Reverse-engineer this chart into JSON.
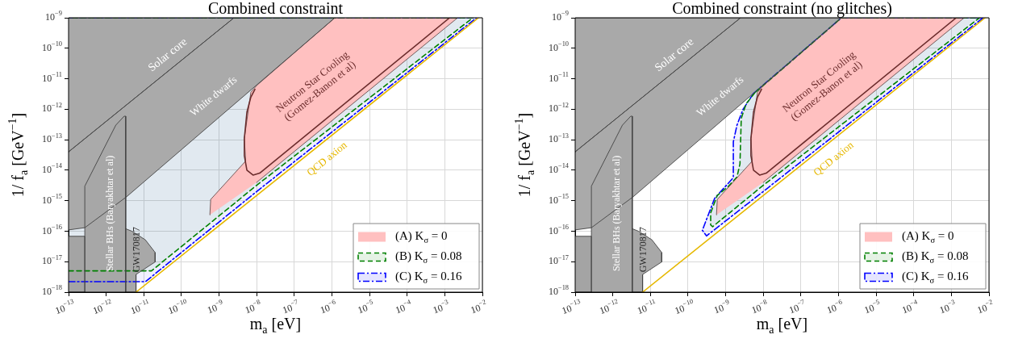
{
  "chart_data": [
    {
      "type": "area",
      "title": "Combined constraint",
      "xlabel": "m$_{a}$ [eV]",
      "ylabel": "1/ f$_{a}$ [GeV$^{−1}$]",
      "log": "xy",
      "grid": true,
      "legend": "bottom right",
      "xlim": [
        1e-13,
        0.01
      ],
      "ylim": [
        1e-18,
        1e-09
      ],
      "xticks": [
        {
          "value": 1e-13,
          "label": "10$^{−13}$"
        },
        {
          "value": 1e-12,
          "label": "10$^{−12}$"
        },
        {
          "value": 1e-11,
          "label": "10$^{−11}$"
        },
        {
          "value": 1e-10,
          "label": "10$^{−10}$"
        },
        {
          "value": 1e-09,
          "label": "10$^{−9}$"
        },
        {
          "value": 1e-08,
          "label": "10$^{−8}$"
        },
        {
          "value": 1e-07,
          "label": "10$^{−7}$"
        },
        {
          "value": 1e-06,
          "label": "10$^{−6}$"
        },
        {
          "value": 1e-05,
          "label": "10$^{−5}$"
        },
        {
          "value": 0.0001,
          "label": "10$^{−4}$"
        },
        {
          "value": 0.001,
          "label": "10$^{−3}$"
        },
        {
          "value": 0.01,
          "label": "10$^{−2}$"
        }
      ],
      "yticks": [
        {
          "value": 1e-18,
          "label": "10$^{−18}$"
        },
        {
          "value": 1e-17,
          "label": "10$^{−17}$"
        },
        {
          "value": 1e-16,
          "label": "10$^{−16}$"
        },
        {
          "value": 1e-15,
          "label": "10$^{−15}$"
        },
        {
          "value": 1e-14,
          "label": "10$^{−14}$"
        },
        {
          "value": 1e-13,
          "label": "10$^{−13}$"
        },
        {
          "value": 1e-12,
          "label": "10$^{−12}$"
        },
        {
          "value": 1e-11,
          "label": "10$^{−11}$"
        },
        {
          "value": 1e-10,
          "label": "10$^{−10}$"
        },
        {
          "value": 1e-09,
          "label": "10$^{−9}$"
        }
      ],
      "series": [
        {
          "name": "(C) K$_{σ}$ = 0.16",
          "type": "area",
          "color": "#0000ff",
          "line_style": "dashdot",
          "x": [
            1e-13,
            1.1e-11,
            1e-08,
            0.007,
            1e-13
          ],
          "values": [
            2.2e-18,
            2.2e-18,
            2e-15,
            1e-09,
            1e-09
          ]
        },
        {
          "name": "(B) K$_{σ}$ = 0.08",
          "type": "area",
          "color": "#008000",
          "line_style": "dashed",
          "x": [
            1e-13,
            1.6e-11,
            1e-08,
            0.0056,
            1e-13
          ],
          "values": [
            5e-18,
            5e-18,
            3.2e-15,
            1e-09,
            1e-09
          ]
        },
        {
          "name": "(A) K$_{σ}$ = 0",
          "type": "area",
          "color": "#ffc0c0",
          "x": [
            5.7e-10,
            6e-10,
            5.1e-09,
            4.7e-09,
            7e-09,
            1e-08,
            1.2e-06,
            0.0022,
            1e-08
          ],
          "values": [
            3.4e-16,
            1.1e-15,
            2e-14,
            1.1e-13,
            3.6e-12,
            6e-12,
            1e-09,
            1e-09,
            4e-15
          ]
        },
        {
          "name": "Solar core",
          "type": "area",
          "color": "#a9a9a9",
          "x": [
            1e-13,
            2.5e-09,
            1e-13
          ],
          "values": [
            4e-14,
            1e-09,
            1e-09
          ]
        },
        {
          "name": "White dwarfs",
          "type": "area",
          "color": "#aaaaaa",
          "x": [
            1e-13,
            2.5e-09,
            1.2e-06,
            3.5e-12,
            2.7e-13,
            1e-13
          ],
          "values": [
            4e-14,
            1e-09,
            1e-09,
            1.35e-15,
            1.3e-16,
            1.1e-16
          ]
        },
        {
          "type": "area",
          "color": "#a4a4a4",
          "x": [
            1e-13,
            2.7e-13,
            2.7e-13,
            1e-13
          ],
          "values": [
            1e-18,
            1e-18,
            6.8e-17,
            6.8e-17
          ]
        },
        {
          "name": "Stellar BHs (Baryakhtar et al)",
          "type": "area",
          "color": "#a7a7a7",
          "x": [
            2.7e-13,
            2.7e-13,
            1.8e-12,
            3e-12,
            3.3e-12,
            3.3e-12
          ],
          "values": [
            1e-18,
            3e-15,
            3e-13,
            5.9e-13,
            5.9e-13,
            1e-18
          ]
        },
        {
          "name": "GW170817",
          "type": "area",
          "color": "#a8a8a8",
          "x": [
            3.3e-12,
            4.8e-12,
            1.1e-11,
            2e-11,
            2e-11,
            6.2e-12,
            6.2e-12,
            3.3e-12
          ],
          "values": [
            1.2e-16,
            1e-16,
            5.2e-17,
            2e-17,
            9.8e-18,
            3.8e-18,
            1e-18,
            1e-18
          ]
        },
        {
          "name": "Neutron Star Cooling\n(Gomez-Banon et al)",
          "type": "line",
          "color": "#6b2c2c",
          "x": [
            0.00135,
            1.2e-08,
            8e-09,
            5.5e-09,
            4.7e-09,
            4.7e-09,
            5.5e-09,
            7e-09,
            9e-09
          ],
          "values": [
            1e-09,
            8e-15,
            6.9e-15,
            1e-14,
            3e-14,
            1.1e-13,
            8e-13,
            2.5e-12,
            4.5e-12
          ]
        },
        {
          "name": "QCD axion",
          "type": "line",
          "color": "#e6b800",
          "x": [
            6.2e-12,
            0.0079
          ],
          "values": [
            1e-18,
            1e-09
          ]
        }
      ]
    },
    {
      "type": "area",
      "title": "Combined constraint (no glitches)",
      "xlabel": "m$_{a}$ [eV]",
      "ylabel": "1/ f$_{a}$ [GeV$^{−1}$]",
      "log": "xy",
      "grid": true,
      "legend": "bottom right",
      "xlim": [
        1e-13,
        0.01
      ],
      "ylim": [
        1e-18,
        1e-09
      ],
      "xticks": [
        {
          "value": 1e-13,
          "label": "10$^{−13}$"
        },
        {
          "value": 1e-12,
          "label": "10$^{−12}$"
        },
        {
          "value": 1e-11,
          "label": "10$^{−11}$"
        },
        {
          "value": 1e-10,
          "label": "10$^{−10}$"
        },
        {
          "value": 1e-09,
          "label": "10$^{−9}$"
        },
        {
          "value": 1e-08,
          "label": "10$^{−8}$"
        },
        {
          "value": 1e-07,
          "label": "10$^{−7}$"
        },
        {
          "value": 1e-06,
          "label": "10$^{−6}$"
        },
        {
          "value": 1e-05,
          "label": "10$^{−5}$"
        },
        {
          "value": 0.0001,
          "label": "10$^{−4}$"
        },
        {
          "value": 0.001,
          "label": "10$^{−3}$"
        },
        {
          "value": 0.01,
          "label": "10$^{−2}$"
        }
      ],
      "yticks": [
        {
          "value": 1e-18,
          "label": "10$^{−18}$"
        },
        {
          "value": 1e-17,
          "label": "10$^{−17}$"
        },
        {
          "value": 1e-16,
          "label": "10$^{−16}$"
        },
        {
          "value": 1e-15,
          "label": "10$^{−15}$"
        },
        {
          "value": 1e-14,
          "label": "10$^{−14}$"
        },
        {
          "value": 1e-13,
          "label": "10$^{−13}$"
        },
        {
          "value": 1e-12,
          "label": "10$^{−12}$"
        },
        {
          "value": 1e-11,
          "label": "10$^{−11}$"
        },
        {
          "value": 1e-10,
          "label": "10$^{−10}$"
        },
        {
          "value": 1e-09,
          "label": "10$^{−9}$"
        }
      ],
      "series": [
        {
          "name": "(C) K$_{σ}$ = 0.16",
          "type": "area",
          "color": "#0000ff",
          "line_style": "dashdot",
          "x": [
            5.5e-09,
            2.9e-09,
            2e-09,
            1.6e-09,
            1.6e-09,
            5.1e-10,
            2.4e-10,
            3.1e-10,
            1e-08,
            0.007,
            1.2e-06,
            5.5e-09
          ],
          "values": [
            3.3e-12,
            1e-12,
            3e-13,
            8.5e-14,
            5.7e-15,
            1.2e-15,
            1.07e-16,
            7e-17,
            2e-15,
            1e-09,
            1e-09,
            3.3e-12
          ]
        },
        {
          "name": "(B) K$_{σ}$ = 0.08",
          "type": "area",
          "color": "#008000",
          "line_style": "dashed",
          "x": [
            6e-09,
            3.5e-09,
            2.6e-09,
            2.4e-09,
            2e-09,
            1.2e-09,
            6e-10,
            4e-10,
            4e-10,
            4.5e-10,
            1e-08,
            0.0056,
            1.2e-06,
            6e-09
          ],
          "values": [
            3.5e-12,
            1.5e-12,
            5e-13,
            1.6e-14,
            6e-15,
            3e-15,
            1.5e-15,
            4e-16,
            1.6e-16,
            1.4e-16,
            3.2e-15,
            1e-09,
            1e-09,
            3.5e-12
          ]
        },
        {
          "name": "(A) K$_{σ}$ = 0",
          "type": "area",
          "color": "#ffc0c0",
          "x": [
            5.7e-10,
            6e-10,
            5.1e-09,
            4.7e-09,
            7e-09,
            1e-08,
            1.2e-06,
            0.0022,
            1e-08
          ],
          "values": [
            3.4e-16,
            1.1e-15,
            2e-14,
            1.1e-13,
            3.6e-12,
            6e-12,
            1e-09,
            1e-09,
            4e-15
          ]
        },
        {
          "name": "Solar core",
          "type": "area",
          "color": "#a9a9a9",
          "x": [
            1e-13,
            2.5e-09,
            1e-13
          ],
          "values": [
            4e-14,
            1e-09,
            1e-09
          ]
        },
        {
          "name": "White dwarfs",
          "type": "area",
          "color": "#aaaaaa",
          "x": [
            1e-13,
            2.5e-09,
            1.2e-06,
            3.5e-12,
            2.7e-13,
            1e-13
          ],
          "values": [
            4e-14,
            1e-09,
            1e-09,
            1.35e-15,
            1.3e-16,
            1.1e-16
          ]
        },
        {
          "type": "area",
          "color": "#a4a4a4",
          "x": [
            1e-13,
            2.7e-13,
            2.7e-13,
            1e-13
          ],
          "values": [
            1e-18,
            1e-18,
            6.8e-17,
            6.8e-17
          ]
        },
        {
          "name": "Stellar BHs (Baryakhtar et al)",
          "type": "area",
          "color": "#a7a7a7",
          "x": [
            2.7e-13,
            2.7e-13,
            1.8e-12,
            3e-12,
            3.3e-12,
            3.3e-12
          ],
          "values": [
            1e-18,
            3e-15,
            3e-13,
            5.9e-13,
            5.9e-13,
            1e-18
          ]
        },
        {
          "name": "GW170817",
          "type": "area",
          "color": "#a8a8a8",
          "x": [
            3.3e-12,
            4.8e-12,
            1.1e-11,
            2e-11,
            2e-11,
            6.2e-12,
            6.2e-12,
            3.3e-12
          ],
          "values": [
            1.2e-16,
            1e-16,
            5.2e-17,
            2e-17,
            9.8e-18,
            3.8e-18,
            1e-18,
            1e-18
          ]
        },
        {
          "name": "Neutron Star Cooling\n(Gomez-Banon et al)",
          "type": "line",
          "color": "#6b2c2c",
          "x": [
            0.00135,
            1.2e-08,
            8e-09,
            5.5e-09,
            4.7e-09,
            4.7e-09,
            5.5e-09,
            7e-09,
            9e-09
          ],
          "values": [
            1e-09,
            8e-15,
            6.9e-15,
            1e-14,
            3e-14,
            1.1e-13,
            8e-13,
            2.5e-12,
            4.5e-12
          ]
        },
        {
          "name": "QCD axion",
          "type": "line",
          "color": "#e6b800",
          "x": [
            6.2e-12,
            0.0079
          ],
          "values": [
            1e-18,
            1e-09
          ]
        }
      ]
    }
  ]
}
